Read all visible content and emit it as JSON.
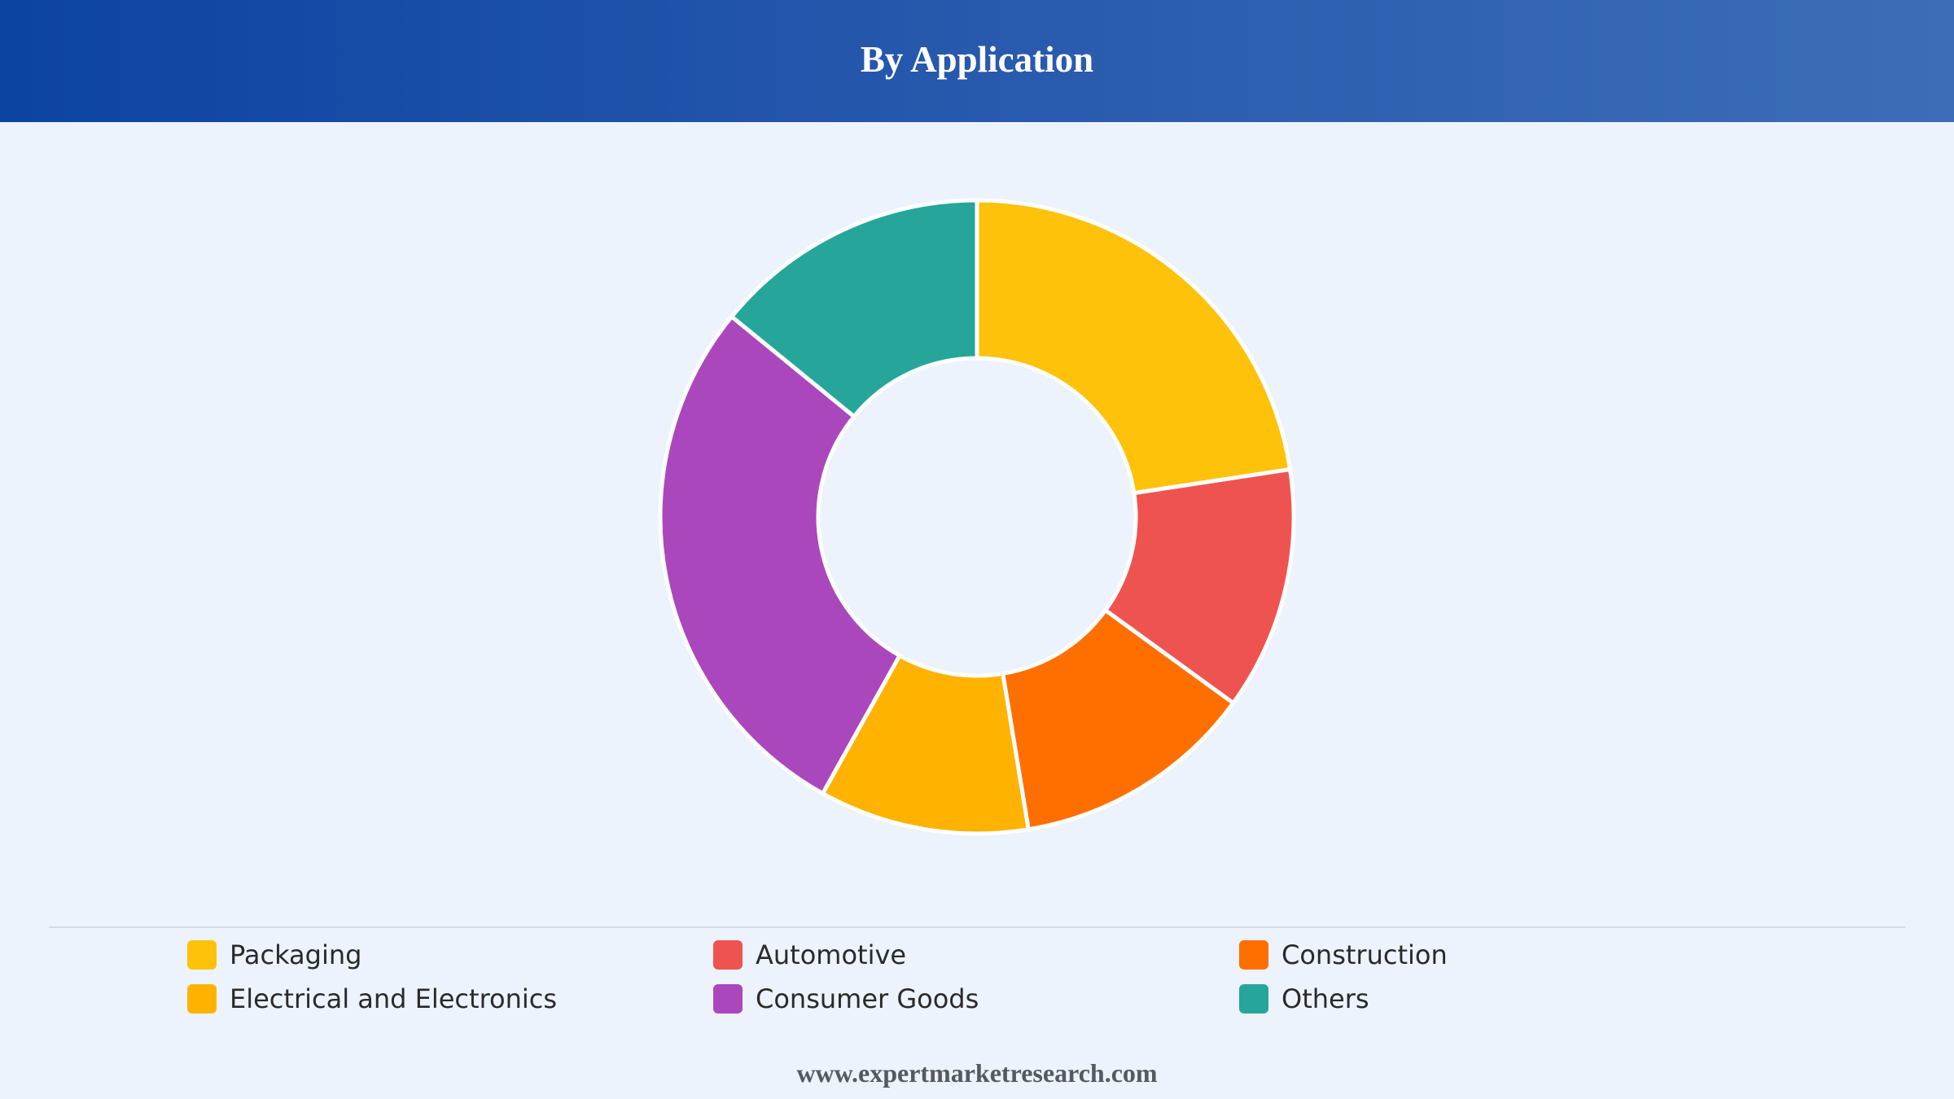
{
  "header": {
    "title": "By Application"
  },
  "chart_data": {
    "type": "pie",
    "title": "By Application",
    "donut": true,
    "legend_position": "bottom",
    "slices": [
      {
        "label": "Packaging",
        "value": 22.6,
        "color": "#ffc20a"
      },
      {
        "label": "Automotive",
        "value": 12.4,
        "color": "#ef5350"
      },
      {
        "label": "Construction",
        "value": 12.4,
        "color": "#ff6f00"
      },
      {
        "label": "Electrical and Electronics",
        "value": 10.7,
        "color": "#ffb300"
      },
      {
        "label": "Consumer Goods",
        "value": 27.8,
        "color": "#ab47bc"
      },
      {
        "label": "Others",
        "value": 14.1,
        "color": "#26a69a"
      }
    ]
  },
  "footer": {
    "source_text": "www.expertmarketresearch.com"
  }
}
